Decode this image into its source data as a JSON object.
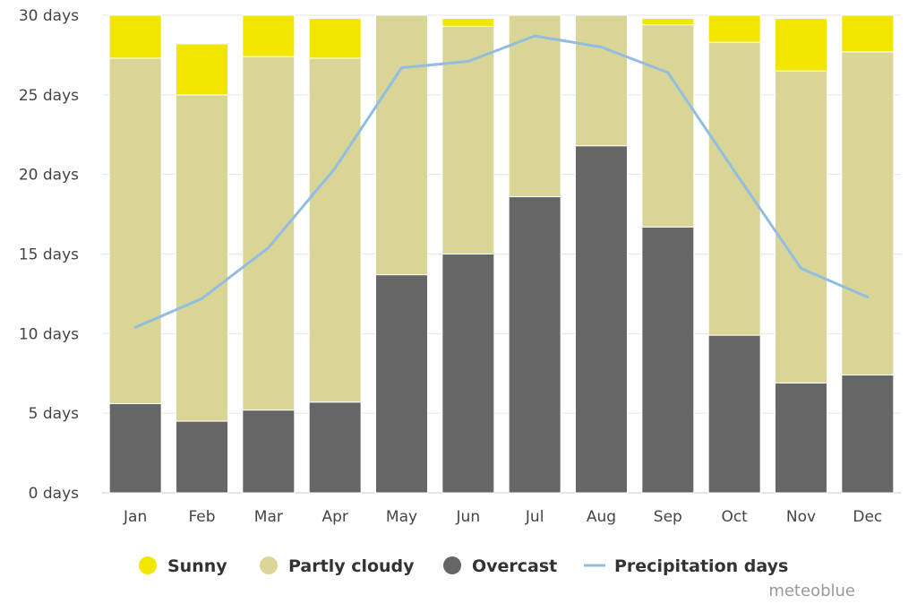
{
  "chart_data": {
    "type": "bar",
    "stacked": true,
    "categories": [
      "Jan",
      "Feb",
      "Mar",
      "Apr",
      "May",
      "Jun",
      "Jul",
      "Aug",
      "Sep",
      "Oct",
      "Nov",
      "Dec"
    ],
    "y_tick_labels": [
      "0 days",
      "5 days",
      "10 days",
      "15 days",
      "20 days",
      "25 days",
      "30 days"
    ],
    "y_ticks": [
      0,
      5,
      10,
      15,
      20,
      25,
      30
    ],
    "ylim": [
      0,
      30
    ],
    "grid": true,
    "legend_position": "bottom",
    "series": [
      {
        "name": "Overcast",
        "color": "#666666",
        "kind": "bar",
        "values": [
          5.6,
          4.5,
          5.2,
          5.7,
          13.7,
          15.0,
          18.6,
          21.8,
          16.7,
          9.9,
          6.9,
          7.4
        ]
      },
      {
        "name": "Partly cloudy",
        "color": "#d8d597",
        "kind": "bar",
        "values": [
          21.7,
          20.5,
          22.2,
          21.6,
          16.3,
          14.3,
          11.4,
          8.2,
          12.7,
          18.4,
          19.6,
          20.3
        ]
      },
      {
        "name": "Sunny",
        "color": "#f2e600",
        "kind": "bar",
        "values": [
          2.7,
          3.2,
          2.6,
          2.5,
          0.0,
          0.5,
          0.0,
          0.0,
          0.4,
          1.7,
          3.3,
          2.3
        ]
      },
      {
        "name": "Precipitation days",
        "color": "#93bde0",
        "kind": "line",
        "values": [
          10.4,
          12.2,
          15.4,
          20.4,
          26.7,
          27.1,
          28.7,
          28.0,
          26.4,
          20.2,
          14.1,
          12.3
        ]
      }
    ],
    "legend_order": [
      "Sunny",
      "Partly cloudy",
      "Overcast",
      "Precipitation days"
    ]
  },
  "credit": "meteoblue"
}
